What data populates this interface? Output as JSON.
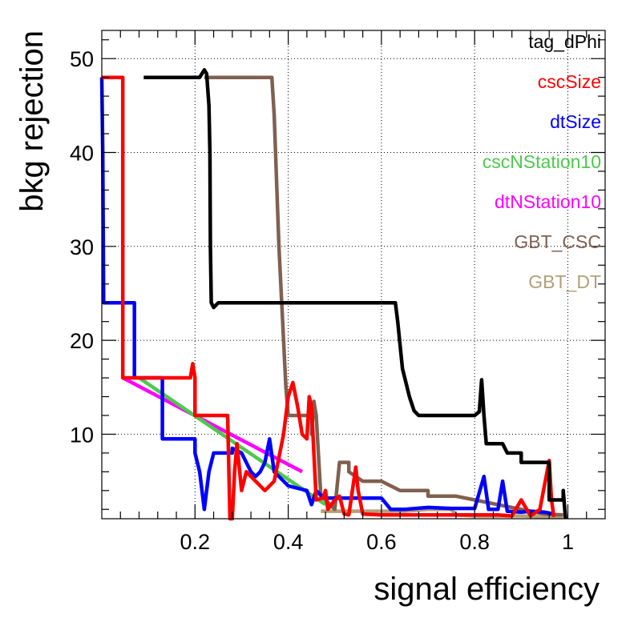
{
  "chart_data": {
    "type": "line",
    "title": "",
    "xlabel": "signal efficiency",
    "ylabel": "bkg rejection",
    "xlim": [
      0,
      1.08
    ],
    "ylim": [
      1,
      53
    ],
    "x_ticks": [
      0.2,
      0.4,
      0.6,
      0.8,
      1
    ],
    "x_tick_labels": [
      "0.2",
      "0.4",
      "0.6",
      "0.8",
      "1"
    ],
    "y_ticks": [
      10,
      20,
      30,
      40,
      50
    ],
    "y_tick_labels": [
      "10",
      "20",
      "30",
      "40",
      "50"
    ],
    "grid": true,
    "legend_position": "top-right",
    "series": [
      {
        "name": "tag_dPhi",
        "color": "#000000",
        "points": [
          [
            0.09,
            48
          ],
          [
            0.21,
            48
          ],
          [
            0.22,
            48.8
          ],
          [
            0.225,
            48.4
          ],
          [
            0.23,
            45
          ],
          [
            0.232,
            40
          ],
          [
            0.233,
            30
          ],
          [
            0.235,
            24
          ],
          [
            0.24,
            23.5
          ],
          [
            0.25,
            24
          ],
          [
            0.3,
            24
          ],
          [
            0.4,
            24
          ],
          [
            0.5,
            24
          ],
          [
            0.63,
            24
          ],
          [
            0.635,
            22
          ],
          [
            0.645,
            17
          ],
          [
            0.66,
            14
          ],
          [
            0.67,
            12.5
          ],
          [
            0.68,
            12
          ],
          [
            0.7,
            12
          ],
          [
            0.75,
            12
          ],
          [
            0.8,
            12
          ],
          [
            0.81,
            12.4
          ],
          [
            0.815,
            15.8
          ],
          [
            0.82,
            12
          ],
          [
            0.825,
            9
          ],
          [
            0.86,
            9
          ],
          [
            0.87,
            8
          ],
          [
            0.9,
            8
          ],
          [
            0.9,
            7
          ],
          [
            0.96,
            7
          ],
          [
            0.96,
            3
          ],
          [
            0.99,
            3
          ],
          [
            0.99,
            4
          ],
          [
            0.995,
            1
          ]
        ]
      },
      {
        "name": "cscSize",
        "color": "#ff0000",
        "points": [
          [
            0,
            48
          ],
          [
            0.04,
            48
          ],
          [
            0.045,
            48
          ],
          [
            0.045,
            16
          ],
          [
            0.11,
            16
          ],
          [
            0.19,
            16
          ],
          [
            0.195,
            17.5
          ],
          [
            0.2,
            16
          ],
          [
            0.2,
            12
          ],
          [
            0.24,
            12
          ],
          [
            0.27,
            12
          ],
          [
            0.275,
            1
          ],
          [
            0.28,
            1
          ],
          [
            0.285,
            6
          ],
          [
            0.29,
            9
          ],
          [
            0.3,
            4
          ],
          [
            0.31,
            6
          ],
          [
            0.33,
            5
          ],
          [
            0.35,
            4
          ],
          [
            0.37,
            5
          ],
          [
            0.39,
            10
          ],
          [
            0.4,
            14
          ],
          [
            0.41,
            15.5
          ],
          [
            0.42,
            13
          ],
          [
            0.43,
            10
          ],
          [
            0.44,
            9.5
          ],
          [
            0.445,
            14
          ],
          [
            0.45,
            13
          ],
          [
            0.455,
            8
          ],
          [
            0.46,
            3
          ],
          [
            0.475,
            3.2
          ],
          [
            0.48,
            4
          ],
          [
            0.485,
            2
          ],
          [
            0.5,
            3
          ],
          [
            0.51,
            3.4
          ],
          [
            0.52,
            1.5
          ],
          [
            0.53,
            1.4
          ],
          [
            0.545,
            6.5
          ],
          [
            0.55,
            4
          ],
          [
            0.56,
            1.5
          ],
          [
            0.6,
            1.4
          ],
          [
            0.7,
            1.4
          ],
          [
            0.8,
            1.4
          ],
          [
            0.85,
            1.4
          ],
          [
            0.88,
            1.3
          ],
          [
            0.9,
            3
          ],
          [
            0.92,
            1.3
          ],
          [
            0.94,
            2
          ],
          [
            0.96,
            7.2
          ],
          [
            0.965,
            3
          ],
          [
            0.97,
            1.2
          ]
        ]
      },
      {
        "name": "dtSize",
        "color": "#0000ff",
        "points": [
          [
            0,
            48
          ],
          [
            0.002,
            40
          ],
          [
            0.004,
            24
          ],
          [
            0.02,
            24
          ],
          [
            0.07,
            24
          ],
          [
            0.07,
            16
          ],
          [
            0.13,
            16
          ],
          [
            0.13,
            12
          ],
          [
            0.13,
            9.5
          ],
          [
            0.2,
            9.5
          ],
          [
            0.2,
            8
          ],
          [
            0.21,
            6
          ],
          [
            0.22,
            2
          ],
          [
            0.23,
            6
          ],
          [
            0.24,
            8
          ],
          [
            0.28,
            8
          ],
          [
            0.28,
            8.5
          ],
          [
            0.3,
            8
          ],
          [
            0.31,
            7
          ],
          [
            0.32,
            6
          ],
          [
            0.33,
            5.5
          ],
          [
            0.34,
            6
          ],
          [
            0.35,
            7
          ],
          [
            0.36,
            9.5
          ],
          [
            0.37,
            6
          ],
          [
            0.38,
            5.5
          ],
          [
            0.4,
            4.5
          ],
          [
            0.44,
            4
          ],
          [
            0.45,
            2.5
          ],
          [
            0.46,
            4
          ],
          [
            0.47,
            3.5
          ],
          [
            0.48,
            3.2
          ],
          [
            0.55,
            3.2
          ],
          [
            0.6,
            3.2
          ],
          [
            0.62,
            2
          ],
          [
            0.65,
            2
          ],
          [
            0.7,
            2.2
          ],
          [
            0.75,
            2.1
          ],
          [
            0.8,
            2.1
          ],
          [
            0.82,
            5.5
          ],
          [
            0.83,
            2
          ],
          [
            0.85,
            2
          ],
          [
            0.86,
            5
          ],
          [
            0.87,
            1.8
          ],
          [
            0.9,
            1.7
          ],
          [
            0.92,
            1.8
          ],
          [
            0.95,
            1.7
          ],
          [
            0.97,
            1.5
          ]
        ]
      },
      {
        "name": "cscNStation10",
        "color": "#4dc94d",
        "points": [
          [
            0.08,
            16
          ],
          [
            0.48,
            2.5
          ]
        ]
      },
      {
        "name": "dtNStation10",
        "color": "#ff00ff",
        "points": [
          [
            0.045,
            16
          ],
          [
            0.43,
            6
          ]
        ]
      },
      {
        "name": "GBT_CSC",
        "color": "#806050",
        "points": [
          [
            0.22,
            48
          ],
          [
            0.36,
            48
          ],
          [
            0.365,
            48
          ],
          [
            0.37,
            44
          ],
          [
            0.38,
            30
          ],
          [
            0.39,
            20
          ],
          [
            0.395,
            15
          ],
          [
            0.4,
            12
          ],
          [
            0.45,
            12
          ],
          [
            0.45,
            10
          ],
          [
            0.455,
            13.5
          ],
          [
            0.46,
            12
          ],
          [
            0.47,
            3.4
          ],
          [
            0.48,
            3
          ],
          [
            0.5,
            2
          ],
          [
            0.51,
            7
          ],
          [
            0.53,
            7
          ],
          [
            0.53,
            6
          ],
          [
            0.56,
            5
          ],
          [
            0.6,
            5
          ],
          [
            0.64,
            4
          ],
          [
            0.7,
            4
          ],
          [
            0.7,
            3.4
          ],
          [
            0.76,
            3.4
          ],
          [
            0.8,
            3
          ],
          [
            0.85,
            2.5
          ],
          [
            0.9,
            2
          ],
          [
            0.95,
            1.5
          ],
          [
            0.99,
            1.4
          ]
        ]
      },
      {
        "name": "GBT_DT",
        "color": "#b4a078",
        "points": [
          [
            0.47,
            1.8
          ],
          [
            0.5,
            1.8
          ],
          [
            0.6,
            1.8
          ],
          [
            0.65,
            1.8
          ],
          [
            0.7,
            2
          ],
          [
            0.75,
            2
          ],
          [
            0.76,
            1.4
          ],
          [
            0.8,
            1.3
          ],
          [
            0.85,
            1.3
          ],
          [
            0.9,
            1.3
          ],
          [
            0.95,
            1.2
          ],
          [
            0.99,
            1.2
          ]
        ]
      }
    ]
  }
}
